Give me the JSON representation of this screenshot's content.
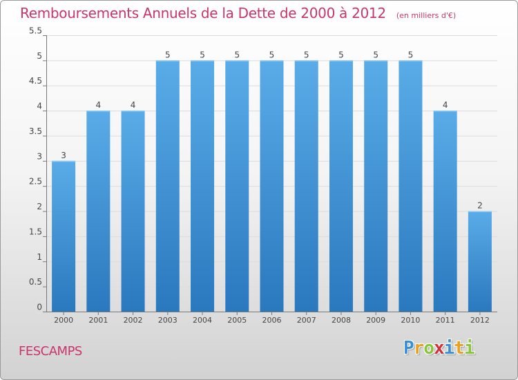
{
  "title": "Remboursements Annuels de la Dette de 2000 à 2012",
  "unit_note": "(en milliers d'€)",
  "commune": "FESCAMPS",
  "brand": {
    "letters": [
      "P",
      "r",
      "o",
      "x",
      "i",
      "t",
      "i"
    ],
    "colors": [
      "#3a8ed6",
      "#e8a020",
      "#8ac43a",
      "#d0303a",
      "#3a8ed6",
      "#e8a020",
      "#8ac43a"
    ]
  },
  "chart_data": {
    "type": "bar",
    "categories": [
      "2000",
      "2001",
      "2002",
      "2003",
      "2004",
      "2005",
      "2006",
      "2007",
      "2008",
      "2009",
      "2010",
      "2011",
      "2012"
    ],
    "values": [
      3,
      4,
      4,
      5,
      5,
      5,
      5,
      5,
      5,
      5,
      5,
      4,
      2
    ],
    "data_labels": [
      "3",
      "4",
      "4",
      "5",
      "5",
      "5",
      "5",
      "5",
      "5",
      "5",
      "5",
      "4",
      "2"
    ],
    "title": "Remboursements Annuels de la Dette de 2000 à 2012",
    "xlabel": "",
    "ylabel": "",
    "ylim": [
      0,
      5.5
    ],
    "yticks": [
      0,
      0.5,
      1,
      1.5,
      2,
      2.5,
      3,
      3.5,
      4,
      4.5,
      5,
      5.5
    ],
    "ytick_labels": [
      "0",
      "0.5",
      "1",
      "1.5",
      "2",
      "2.5",
      "3",
      "3.5",
      "4",
      "4.5",
      "5",
      "5.5"
    ],
    "grid": true,
    "bar_color": "#3e93dc",
    "label_color": "#c8356a"
  }
}
